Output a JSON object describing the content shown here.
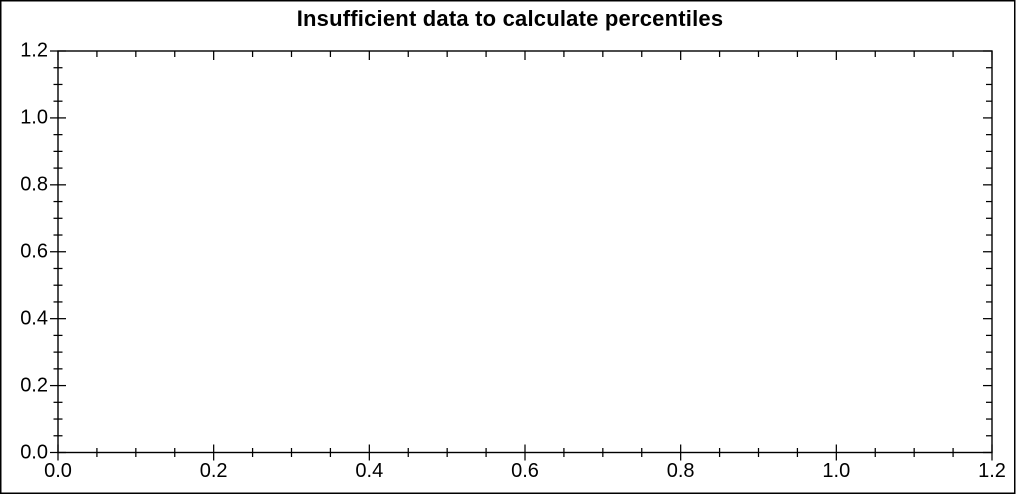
{
  "chart_data": {
    "type": "scatter",
    "title": "Insufficient data to calculate percentiles",
    "series": [],
    "xlabel": "",
    "ylabel": "",
    "xlim": [
      0.0,
      1.2
    ],
    "ylim": [
      0.0,
      1.2
    ],
    "x_ticks": {
      "values": [
        0.0,
        0.2,
        0.4,
        0.6,
        0.8,
        1.0,
        1.2
      ],
      "labels": [
        "0.0",
        "0.2",
        "0.4",
        "0.6",
        "0.8",
        "1.0",
        "1.2"
      ]
    },
    "y_ticks": {
      "values": [
        0.0,
        0.2,
        0.4,
        0.6,
        0.8,
        1.0,
        1.2
      ],
      "labels": [
        "0.0",
        "0.2",
        "0.4",
        "0.6",
        "0.8",
        "1.0",
        "1.2"
      ]
    },
    "minor_tick_step": 0.05,
    "grid": false,
    "legend": false
  },
  "colors": {
    "background": "#ffffff",
    "axis": "#000000",
    "text": "#000000"
  }
}
